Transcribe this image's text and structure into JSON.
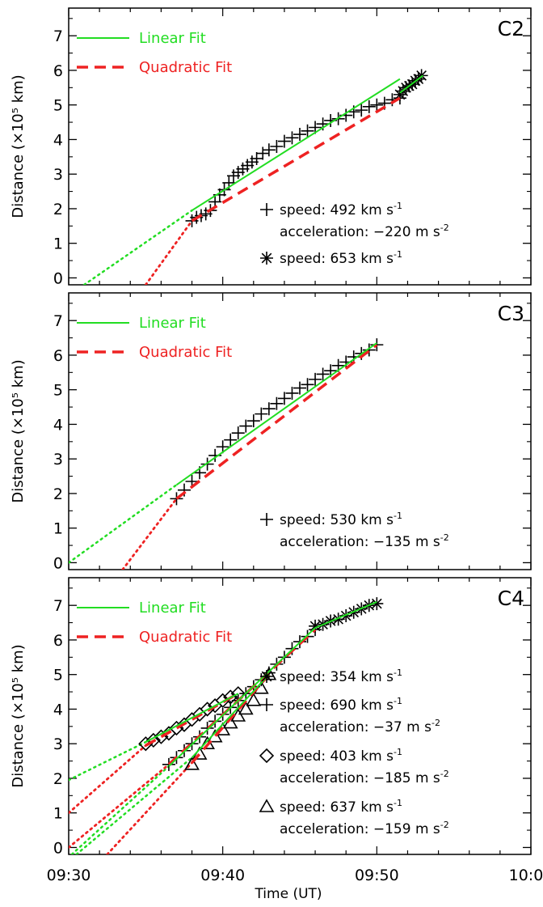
{
  "figure": {
    "xlabel": "Time (UT)",
    "ylabel": "Distance (×10⁵ km)",
    "x_tick_labels": [
      "09:30",
      "09:40",
      "09:50",
      "10:00"
    ],
    "x_ticks_min": [
      0,
      10,
      20,
      30
    ]
  },
  "colors": {
    "linear": "#22dd22",
    "quadratic": "#ee2222",
    "data": "#000000"
  },
  "chart_data": [
    {
      "type": "scatter",
      "panel_label": "C2",
      "xlim": [
        0,
        30
      ],
      "ylim": [
        -0.2,
        7.8
      ],
      "y_ticks": [
        0,
        1,
        2,
        3,
        4,
        5,
        6,
        7
      ],
      "legend": {
        "linear": "Linear Fit",
        "quadratic": "Quadratic Fit",
        "position": "top-left"
      },
      "series": [
        {
          "marker": "plus",
          "x": [
            8.0,
            8.3,
            8.6,
            8.9,
            9.2,
            9.5,
            9.8,
            10.1,
            10.4,
            10.7,
            11.0,
            11.3,
            11.6,
            11.9,
            12.2,
            12.6,
            13.0,
            13.5,
            14.0,
            14.5,
            15.0,
            15.5,
            16.0,
            16.5,
            17.0,
            17.5,
            18.0,
            18.5,
            19.0,
            19.5,
            20.0,
            20.5,
            21.0,
            21.5
          ],
          "y": [
            1.65,
            1.75,
            1.8,
            1.85,
            1.95,
            2.2,
            2.4,
            2.55,
            2.75,
            2.95,
            3.05,
            3.15,
            3.25,
            3.35,
            3.45,
            3.6,
            3.7,
            3.8,
            3.95,
            4.05,
            4.15,
            4.25,
            4.35,
            4.45,
            4.55,
            4.6,
            4.7,
            4.8,
            4.85,
            4.95,
            5.0,
            5.05,
            5.15,
            5.2
          ],
          "annotations": [
            "speed: 492 km s⁻¹",
            "acceleration: −220 m s⁻²"
          ],
          "linear_fit": [
            [
              8.0,
              1.95
            ],
            [
              21.5,
              5.75
            ]
          ],
          "quadratic_fit": [
            [
              8.0,
              1.65
            ],
            [
              21.5,
              5.2
            ]
          ],
          "linear_extrap": [
            [
              1.0,
              -0.2
            ],
            [
              8.0,
              1.95
            ]
          ],
          "quadratic_extrap": [
            [
              5.0,
              -0.2
            ],
            [
              8.0,
              1.65
            ]
          ]
        },
        {
          "marker": "asterisk",
          "x": [
            21.5,
            21.7,
            21.9,
            22.1,
            22.3,
            22.5,
            22.7,
            22.9
          ],
          "y": [
            5.3,
            5.4,
            5.5,
            5.55,
            5.6,
            5.7,
            5.75,
            5.85
          ],
          "annotations": [
            "speed: 653 km s⁻¹"
          ],
          "linear_fit": [
            [
              21.5,
              5.35
            ],
            [
              23.0,
              5.85
            ]
          ]
        }
      ]
    },
    {
      "type": "scatter",
      "panel_label": "C3",
      "xlim": [
        0,
        30
      ],
      "ylim": [
        -0.2,
        7.8
      ],
      "y_ticks": [
        0,
        1,
        2,
        3,
        4,
        5,
        6,
        7
      ],
      "legend": {
        "linear": "Linear Fit",
        "quadratic": "Quadratic Fit",
        "position": "top-left"
      },
      "series": [
        {
          "marker": "plus",
          "x": [
            7.0,
            7.5,
            8.0,
            8.5,
            9.0,
            9.5,
            10.0,
            10.5,
            11.0,
            11.5,
            12.0,
            12.5,
            13.0,
            13.5,
            14.0,
            14.5,
            15.0,
            15.5,
            16.0,
            16.5,
            17.0,
            17.5,
            18.0,
            18.5,
            19.0,
            19.5,
            20.0
          ],
          "y": [
            1.85,
            2.1,
            2.35,
            2.6,
            2.85,
            3.1,
            3.35,
            3.55,
            3.75,
            3.95,
            4.1,
            4.3,
            4.45,
            4.6,
            4.75,
            4.9,
            5.05,
            5.15,
            5.3,
            5.45,
            5.55,
            5.7,
            5.8,
            5.95,
            6.05,
            6.15,
            6.3
          ],
          "annotations": [
            "speed: 530 km s⁻¹",
            "acceleration: −135 m s⁻²"
          ],
          "linear_fit": [
            [
              7.0,
              2.25
            ],
            [
              20.0,
              6.35
            ]
          ],
          "quadratic_fit": [
            [
              7.0,
              1.85
            ],
            [
              20.0,
              6.3
            ]
          ],
          "linear_extrap": [
            [
              0.0,
              0.0
            ],
            [
              7.0,
              2.25
            ]
          ],
          "quadratic_extrap": [
            [
              3.5,
              -0.2
            ],
            [
              7.0,
              1.85
            ]
          ]
        }
      ]
    },
    {
      "type": "scatter",
      "panel_label": "C4",
      "xlim": [
        0,
        30
      ],
      "ylim": [
        -0.2,
        7.8
      ],
      "y_ticks": [
        0,
        1,
        2,
        3,
        4,
        5,
        6,
        7
      ],
      "legend": {
        "linear": "Linear Fit",
        "quadratic": "Quadratic Fit",
        "position": "top-left"
      },
      "series": [
        {
          "marker": "asterisk",
          "x": [
            16.0,
            16.5,
            17.0,
            17.5,
            18.0,
            18.5,
            19.0,
            19.5,
            20.0
          ],
          "y": [
            6.4,
            6.45,
            6.55,
            6.6,
            6.7,
            6.8,
            6.9,
            7.0,
            7.05
          ],
          "annotations": [
            "speed: 354 km s⁻¹"
          ],
          "linear_fit": [
            [
              16.0,
              6.35
            ],
            [
              20.0,
              7.1
            ]
          ]
        },
        {
          "marker": "plus",
          "x": [
            6.5,
            7.0,
            7.5,
            8.0,
            8.5,
            9.0,
            9.5,
            10.0,
            10.5,
            11.0,
            11.5,
            12.0,
            12.5,
            13.0,
            13.5,
            14.0,
            14.5,
            15.0,
            15.5,
            16.0
          ],
          "y": [
            2.4,
            2.6,
            2.8,
            3.0,
            3.2,
            3.45,
            3.65,
            3.85,
            4.05,
            4.25,
            4.45,
            4.65,
            4.85,
            5.05,
            5.3,
            5.5,
            5.75,
            5.95,
            6.1,
            6.3
          ],
          "annotations": [
            "speed: 690 km s⁻¹",
            "acceleration: −37 m s⁻²"
          ],
          "linear_fit": [
            [
              6.5,
              2.35
            ],
            [
              16.0,
              6.35
            ]
          ],
          "quadratic_fit": [
            [
              6.5,
              2.4
            ],
            [
              16.0,
              6.3
            ]
          ],
          "linear_extrap": [
            [
              0.2,
              -0.2
            ],
            [
              6.5,
              2.35
            ]
          ],
          "quadratic_extrap": [
            [
              0.0,
              0.0
            ],
            [
              6.5,
              2.4
            ]
          ]
        },
        {
          "marker": "diamond",
          "x": [
            5.0,
            5.5,
            6.0,
            6.5,
            7.0,
            7.5,
            8.0,
            8.5,
            9.0,
            9.5,
            10.0,
            10.5,
            11.0
          ],
          "y": [
            3.0,
            3.1,
            3.2,
            3.3,
            3.45,
            3.55,
            3.7,
            3.85,
            4.0,
            4.1,
            4.25,
            4.35,
            4.45
          ],
          "annotations": [
            "speed: 403 km s⁻¹",
            "acceleration: −185 m s⁻²"
          ],
          "linear_fit": [
            [
              5.0,
              3.05
            ],
            [
              11.0,
              4.45
            ]
          ],
          "quadratic_fit": [
            [
              5.0,
              2.95
            ],
            [
              11.0,
              4.45
            ]
          ],
          "linear_extrap": [
            [
              0.0,
              1.95
            ],
            [
              5.0,
              3.05
            ]
          ],
          "quadratic_extrap": [
            [
              0.0,
              1.0
            ],
            [
              5.0,
              2.95
            ]
          ]
        },
        {
          "marker": "triangle",
          "x": [
            8.0,
            8.5,
            9.0,
            9.5,
            10.0,
            10.5,
            11.0,
            11.5,
            12.0,
            12.5,
            13.0
          ],
          "y": [
            2.4,
            2.7,
            3.0,
            3.2,
            3.4,
            3.6,
            3.8,
            4.0,
            4.25,
            4.6,
            5.0
          ],
          "annotations": [
            "speed: 637 km s⁻¹",
            "acceleration: −159 m s⁻²"
          ],
          "linear_fit": [
            [
              8.0,
              2.6
            ],
            [
              13.0,
              5.0
            ]
          ],
          "quadratic_fit": [
            [
              8.0,
              2.45
            ],
            [
              13.0,
              5.0
            ]
          ],
          "linear_extrap": [
            [
              0.5,
              -0.2
            ],
            [
              8.0,
              2.6
            ]
          ],
          "quadratic_extrap": [
            [
              2.5,
              -0.2
            ],
            [
              8.0,
              2.45
            ]
          ]
        }
      ]
    }
  ]
}
